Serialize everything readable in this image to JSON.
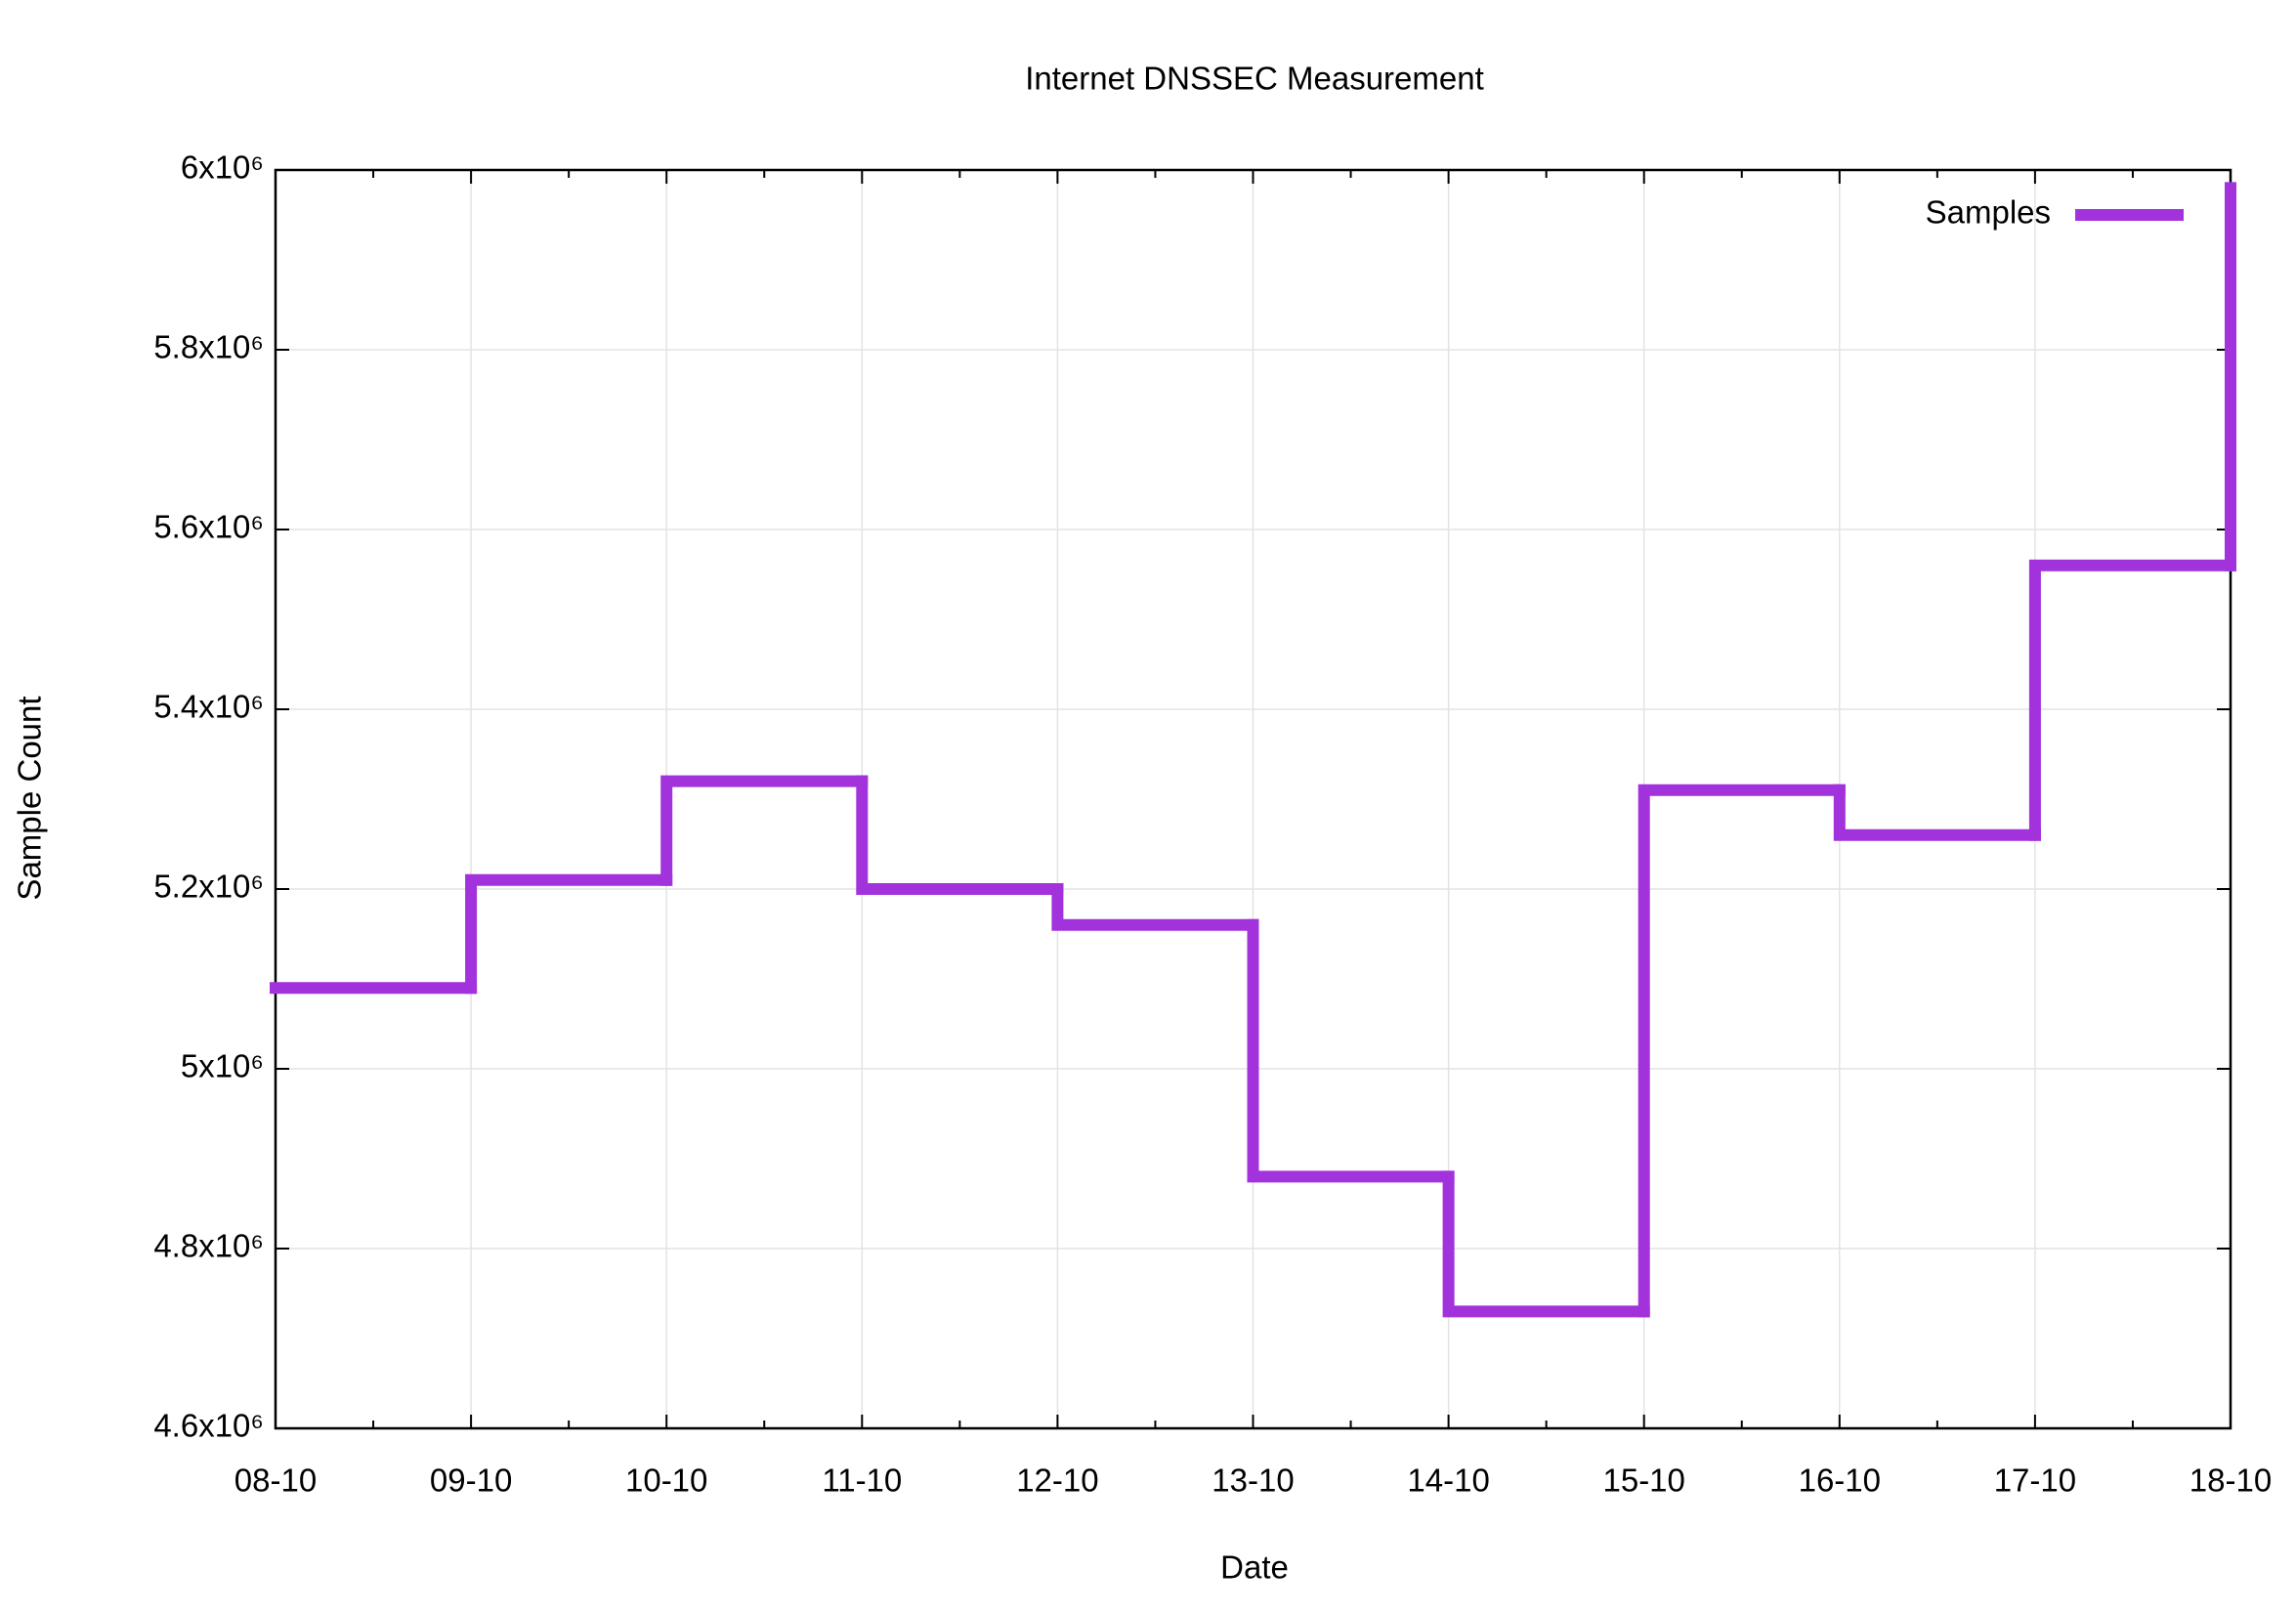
{
  "chart_data": {
    "type": "step",
    "title": "Internet DNSSEC Measurement",
    "x_label": "Date",
    "y_label": "Sample Count",
    "categories": [
      "08-10",
      "09-10",
      "10-10",
      "11-10",
      "12-10",
      "13-10",
      "14-10",
      "15-10",
      "16-10",
      "17-10",
      "18-10"
    ],
    "series": [
      {
        "name": "Samples",
        "color": "#a232dc",
        "values": [
          5090000,
          5210000,
          5320000,
          5200000,
          5160000,
          4880000,
          4730000,
          5310000,
          5260000,
          5560000,
          5980000
        ]
      }
    ],
    "ylim": [
      4600000,
      6000000
    ],
    "yticks": [
      {
        "value": 4600000,
        "label": "4.6x10⁶"
      },
      {
        "value": 4800000,
        "label": "4.8x10⁶"
      },
      {
        "value": 5000000,
        "label": "5x10⁶"
      },
      {
        "value": 5200000,
        "label": "5.2x10⁶"
      },
      {
        "value": 5400000,
        "label": "5.4x10⁶"
      },
      {
        "value": 5600000,
        "label": "5.6x10⁶"
      },
      {
        "value": 5800000,
        "label": "5.8x10⁶"
      },
      {
        "value": 6000000,
        "label": "6x10⁶"
      }
    ],
    "grid": true,
    "legend": "upper right"
  }
}
